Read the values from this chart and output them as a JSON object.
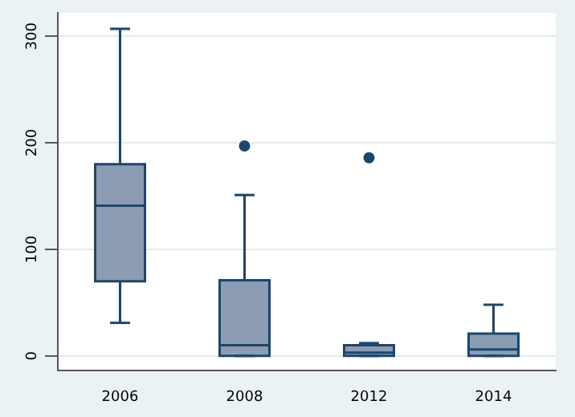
{
  "chart_data": {
    "type": "box",
    "categories": [
      "2006",
      "2008",
      "2012",
      "2014"
    ],
    "boxes": [
      {
        "low": 31,
        "q1": 70,
        "median": 141,
        "q3": 180,
        "high": 307
      },
      {
        "low": 0,
        "q1": 0,
        "median": 10,
        "q3": 71,
        "high": 151,
        "outliers": [
          197
        ]
      },
      {
        "low": 0,
        "q1": 0,
        "median": 3,
        "q3": 10,
        "high": 12,
        "outliers": [
          186
        ]
      },
      {
        "low": 0,
        "q1": 0,
        "median": 6,
        "q3": 21,
        "high": 48
      }
    ],
    "color": "#8c9cb2",
    "ylim": [
      -14,
      322
    ],
    "yticks": [
      0,
      100,
      200,
      300
    ],
    "grid": "y",
    "legend": false
  }
}
